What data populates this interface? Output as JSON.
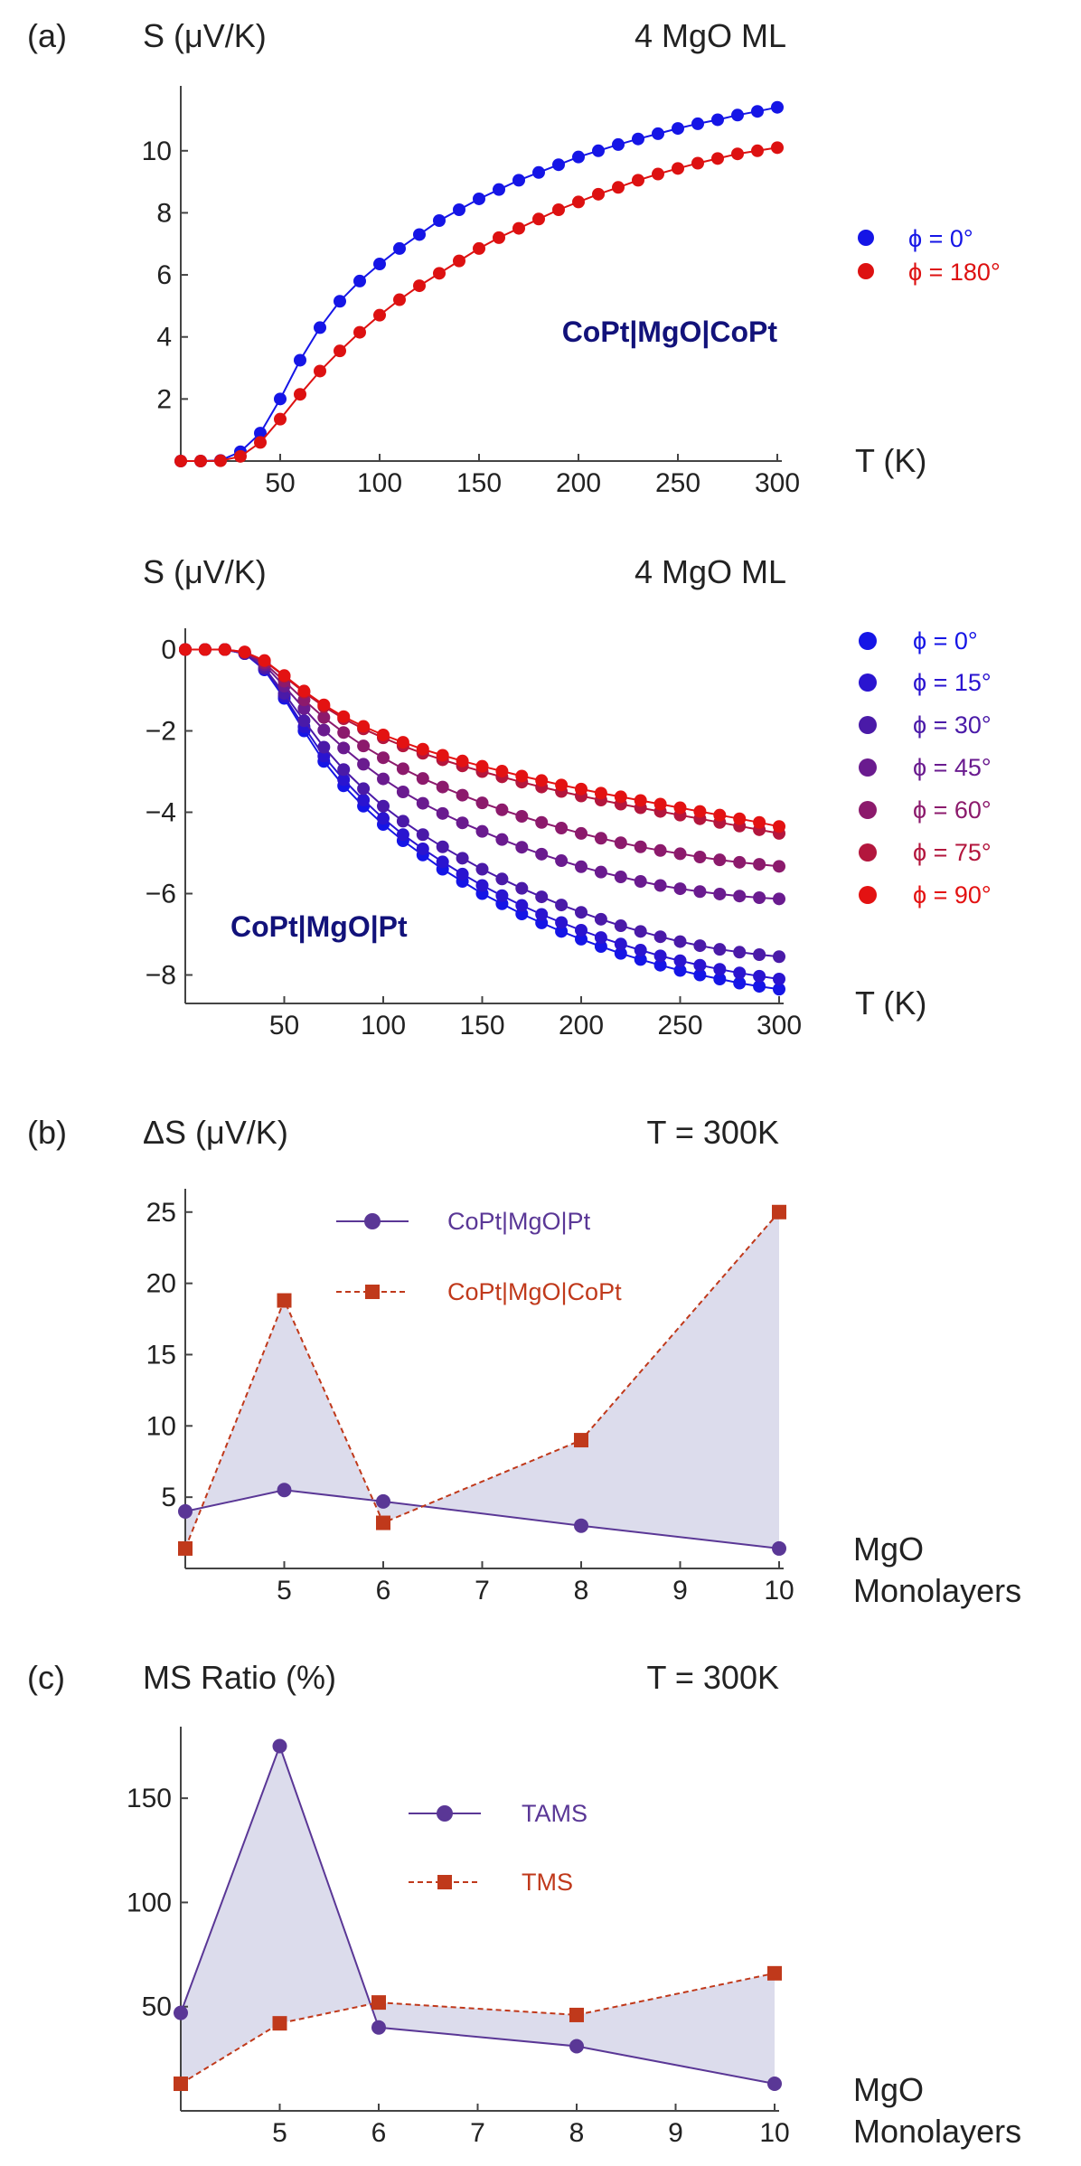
{
  "chart_data": [
    {
      "type": "line",
      "panel": "(a)",
      "title": "4 MgO ML",
      "ylabel": "S (μV/K)",
      "xlabel": "T (K)",
      "annotation": "CoPt|MgO|CoPt",
      "xlim": [
        0,
        300
      ],
      "ylim": [
        0,
        11.8
      ],
      "xticks": [
        50,
        100,
        150,
        200,
        250,
        300
      ],
      "yticks": [
        2,
        4,
        6,
        8,
        10
      ],
      "x": [
        0,
        10,
        20,
        30,
        40,
        50,
        60,
        70,
        80,
        90,
        100,
        110,
        120,
        130,
        140,
        150,
        160,
        170,
        180,
        190,
        200,
        210,
        220,
        230,
        240,
        250,
        260,
        270,
        280,
        290,
        300
      ],
      "series": [
        {
          "name": "ϕ = 0°",
          "color": "#1515e6",
          "values": [
            0,
            0,
            0.02,
            0.3,
            0.9,
            2.0,
            3.25,
            4.3,
            5.15,
            5.8,
            6.35,
            6.85,
            7.3,
            7.75,
            8.1,
            8.45,
            8.75,
            9.05,
            9.3,
            9.55,
            9.8,
            10.0,
            10.2,
            10.38,
            10.55,
            10.72,
            10.87,
            11.0,
            11.15,
            11.27,
            11.4
          ]
        },
        {
          "name": "ϕ = 180°",
          "color": "#dd1111",
          "values": [
            0,
            0,
            0.01,
            0.15,
            0.6,
            1.35,
            2.15,
            2.9,
            3.55,
            4.15,
            4.7,
            5.2,
            5.65,
            6.05,
            6.45,
            6.85,
            7.2,
            7.5,
            7.8,
            8.1,
            8.35,
            8.6,
            8.82,
            9.05,
            9.25,
            9.43,
            9.6,
            9.75,
            9.9,
            10.0,
            10.1
          ]
        }
      ]
    },
    {
      "type": "line",
      "title": "4 MgO ML",
      "ylabel": "S (μV/K)",
      "xlabel": "T (K)",
      "annotation": "CoPt|MgO|Pt",
      "xlim": [
        0,
        300
      ],
      "ylim": [
        -8.7,
        0.3
      ],
      "xticks": [
        50,
        100,
        150,
        200,
        250,
        300
      ],
      "yticks": [
        0,
        -2,
        -4,
        -6,
        -8
      ],
      "x": [
        0,
        10,
        20,
        30,
        40,
        50,
        60,
        70,
        80,
        90,
        100,
        110,
        120,
        130,
        140,
        150,
        160,
        170,
        180,
        190,
        200,
        210,
        220,
        230,
        240,
        250,
        260,
        270,
        280,
        290,
        300
      ],
      "series": [
        {
          "name": "ϕ = 0°",
          "color": "#1515e6",
          "values": [
            0,
            0,
            0,
            -0.1,
            -0.5,
            -1.2,
            -2.0,
            -2.75,
            -3.35,
            -3.85,
            -4.3,
            -4.7,
            -5.05,
            -5.4,
            -5.7,
            -6.0,
            -6.25,
            -6.5,
            -6.72,
            -6.93,
            -7.12,
            -7.3,
            -7.47,
            -7.62,
            -7.76,
            -7.89,
            -8.0,
            -8.1,
            -8.2,
            -8.28,
            -8.35
          ]
        },
        {
          "name": "ϕ = 15°",
          "color": "#2a14d0",
          "values": [
            0,
            0,
            0,
            -0.1,
            -0.48,
            -1.15,
            -1.9,
            -2.62,
            -3.2,
            -3.7,
            -4.15,
            -4.55,
            -4.9,
            -5.22,
            -5.52,
            -5.8,
            -6.05,
            -6.29,
            -6.51,
            -6.71,
            -6.9,
            -7.08,
            -7.24,
            -7.39,
            -7.53,
            -7.65,
            -7.76,
            -7.86,
            -7.95,
            -8.03,
            -8.1
          ]
        },
        {
          "name": "ϕ = 30°",
          "color": "#4a1aa8",
          "values": [
            0,
            0,
            0,
            -0.1,
            -0.45,
            -1.08,
            -1.75,
            -2.4,
            -2.95,
            -3.42,
            -3.85,
            -4.22,
            -4.55,
            -4.85,
            -5.13,
            -5.4,
            -5.64,
            -5.87,
            -6.08,
            -6.28,
            -6.46,
            -6.63,
            -6.79,
            -6.93,
            -7.06,
            -7.18,
            -7.28,
            -7.37,
            -7.44,
            -7.5,
            -7.55
          ]
        },
        {
          "name": "ϕ = 45°",
          "color": "#6a1b8f",
          "values": [
            0,
            0,
            0,
            -0.08,
            -0.38,
            -0.9,
            -1.45,
            -1.98,
            -2.42,
            -2.82,
            -3.18,
            -3.5,
            -3.78,
            -4.03,
            -4.26,
            -4.47,
            -4.67,
            -4.86,
            -5.03,
            -5.19,
            -5.34,
            -5.47,
            -5.59,
            -5.7,
            -5.8,
            -5.88,
            -5.95,
            -6.01,
            -6.06,
            -6.1,
            -6.13
          ]
        },
        {
          "name": "ϕ = 60°",
          "color": "#8c1a6c",
          "values": [
            0,
            0,
            0,
            -0.07,
            -0.33,
            -0.78,
            -1.24,
            -1.67,
            -2.04,
            -2.37,
            -2.66,
            -2.93,
            -3.17,
            -3.38,
            -3.58,
            -3.77,
            -3.94,
            -4.1,
            -4.25,
            -4.39,
            -4.52,
            -4.64,
            -4.75,
            -4.85,
            -4.94,
            -5.02,
            -5.1,
            -5.17,
            -5.23,
            -5.28,
            -5.33
          ]
        },
        {
          "name": "ϕ = 75°",
          "color": "#b3163d",
          "values": [
            0,
            0,
            0,
            -0.06,
            -0.28,
            -0.66,
            -1.05,
            -1.4,
            -1.7,
            -1.95,
            -2.17,
            -2.37,
            -2.55,
            -2.71,
            -2.86,
            -3.0,
            -3.13,
            -3.26,
            -3.38,
            -3.49,
            -3.6,
            -3.7,
            -3.8,
            -3.89,
            -3.98,
            -4.07,
            -4.16,
            -4.25,
            -4.34,
            -4.43,
            -4.52
          ]
        },
        {
          "name": "ϕ = 90°",
          "color": "#e31212",
          "values": [
            0,
            0,
            0,
            -0.06,
            -0.27,
            -0.64,
            -1.02,
            -1.36,
            -1.65,
            -1.89,
            -2.1,
            -2.28,
            -2.45,
            -2.6,
            -2.74,
            -2.87,
            -2.99,
            -3.11,
            -3.22,
            -3.33,
            -3.43,
            -3.53,
            -3.62,
            -3.71,
            -3.8,
            -3.89,
            -3.98,
            -4.07,
            -4.16,
            -4.25,
            -4.35
          ]
        }
      ]
    },
    {
      "type": "line",
      "panel": "(b)",
      "title": "T = 300K",
      "ylabel": "ΔS (μV/K)",
      "xlabel": [
        "MgO",
        "Monolayers"
      ],
      "xlim": [
        4,
        10
      ],
      "ylim": [
        0,
        26
      ],
      "xticks": [
        5,
        6,
        7,
        8,
        9,
        10
      ],
      "yticks": [
        5,
        10,
        15,
        20,
        25
      ],
      "fill_between": true,
      "series": [
        {
          "name": "CoPt|MgO|Pt",
          "color": "#5a3796",
          "marker": "circle",
          "dash": "solid",
          "x": [
            4,
            5,
            6,
            8,
            10
          ],
          "values": [
            4.0,
            5.5,
            4.7,
            3.0,
            1.4
          ]
        },
        {
          "name": "CoPt|MgO|CoPt",
          "color": "#c0391b",
          "marker": "square",
          "dash": "dashed",
          "x": [
            4,
            5,
            6,
            8,
            10
          ],
          "values": [
            1.4,
            18.8,
            3.2,
            9.0,
            25.0
          ]
        }
      ]
    },
    {
      "type": "line",
      "panel": "(c)",
      "title": "T = 300K",
      "ylabel": "MS Ratio (%)",
      "xlabel": [
        "MgO",
        "Monolayers"
      ],
      "xlim": [
        4,
        10
      ],
      "ylim": [
        0,
        180
      ],
      "xticks": [
        5,
        6,
        7,
        8,
        9,
        10
      ],
      "yticks": [
        50,
        100,
        150
      ],
      "fill_between": true,
      "series": [
        {
          "name": "TAMS",
          "color": "#5a3796",
          "marker": "circle",
          "dash": "solid",
          "x": [
            4,
            5,
            6,
            8,
            10
          ],
          "values": [
            47,
            175,
            40,
            31,
            13
          ]
        },
        {
          "name": "TMS",
          "color": "#c0391b",
          "marker": "square",
          "dash": "dashed",
          "x": [
            4,
            5,
            6,
            8,
            10
          ],
          "values": [
            13,
            42,
            52,
            46,
            66
          ]
        }
      ]
    }
  ]
}
